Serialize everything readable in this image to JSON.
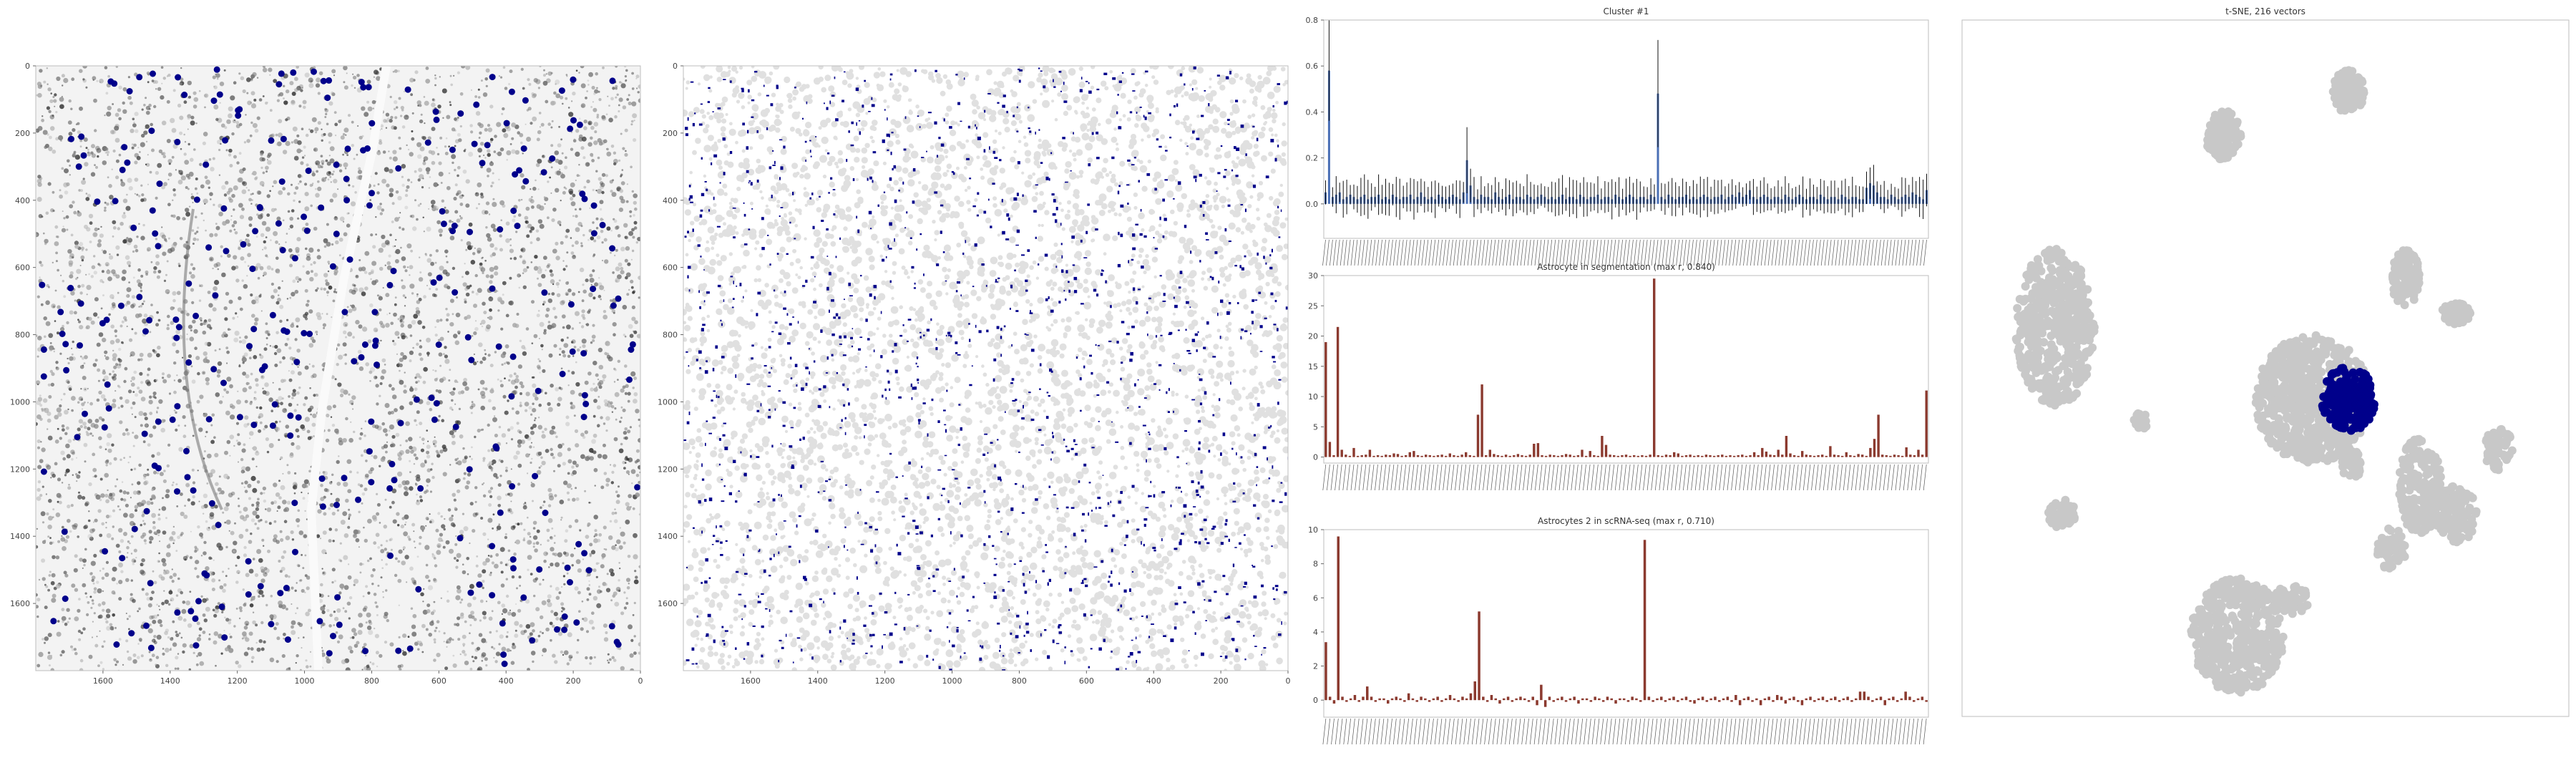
{
  "image_panels": [
    {
      "title": "",
      "type": "image-with-points",
      "xticks": [
        "1600",
        "1400",
        "1200",
        "1000",
        "800",
        "600",
        "400",
        "200",
        "0"
      ],
      "yticks": [
        "0",
        "200",
        "400",
        "600",
        "800",
        "1000",
        "1200",
        "1400",
        "1600"
      ],
      "xlim": [
        1800,
        0
      ],
      "ylim": [
        1800,
        0
      ],
      "background": "grayscale tissue stain",
      "marker_color": "#00008b"
    },
    {
      "title": "",
      "type": "segmentation-map",
      "xticks": [
        "1600",
        "1400",
        "1200",
        "1000",
        "800",
        "600",
        "400",
        "200",
        "0"
      ],
      "yticks": [
        "0",
        "200",
        "400",
        "600",
        "800",
        "1000",
        "1200",
        "1400",
        "1600"
      ],
      "xlim": [
        1800,
        0
      ],
      "ylim": [
        1800,
        0
      ],
      "cell_color": "#e0e0e0",
      "highlight_color": "#00008b"
    }
  ],
  "bar_panels": [
    {
      "title": "Cluster #1",
      "yticks": [
        "0.0",
        "0.2",
        "0.4",
        "0.6",
        "0.8"
      ],
      "ylim": [
        -0.15,
        0.8
      ],
      "bar_color": "#4a6fb5",
      "error_color": "#111111"
    },
    {
      "title": "Astrocyte in segmentation (max r, 0.840)",
      "yticks": [
        "0",
        "5",
        "10",
        "15",
        "20",
        "25",
        "30"
      ],
      "ylim": [
        -1,
        30
      ],
      "bar_color": "#8b3a2f"
    },
    {
      "title": "Astrocytes 2 in scRNA-seq (max r, 0.710)",
      "yticks": [
        "0",
        "2",
        "4",
        "6",
        "8",
        "10"
      ],
      "ylim": [
        -1,
        10
      ],
      "bar_color": "#8b3a2f"
    }
  ],
  "tsne": {
    "title": "t-SNE, 216 vectors",
    "background_color": "#c8c8c8",
    "highlight_color": "#00008b"
  },
  "chart_data": [
    {
      "type": "scatter",
      "title": "",
      "description_free": true,
      "xlim": [
        1800,
        0
      ],
      "ylim": [
        1800,
        0
      ],
      "series": [
        {
          "values": []
        }
      ]
    },
    {
      "type": "heatmap",
      "title": "",
      "xlim": [
        1800,
        0
      ],
      "ylim": [
        1800,
        0
      ]
    },
    {
      "type": "bar",
      "title": "Cluster #1",
      "ylim": [
        -0.15,
        0.8
      ],
      "values": [
        0.05,
        0.58,
        0.03,
        0.04,
        0.05,
        0.02,
        0.03,
        0.04,
        0.03,
        0.02,
        0.03,
        0.04,
        0.02,
        0.03,
        0.03,
        0.04,
        0.02,
        0.03,
        0.02,
        0.04,
        0.03,
        0.02,
        0.03,
        0.03,
        0.04,
        0.02,
        0.03,
        0.05,
        0.03,
        0.02,
        0.03,
        0.02,
        0.04,
        0.03,
        0.02,
        0.03,
        0.04,
        0.03,
        0.02,
        0.05,
        0.19,
        0.08,
        0.03,
        0.02,
        0.04,
        0.03,
        0.03,
        0.02,
        0.05,
        0.03,
        0.02,
        0.03,
        0.04,
        0.02,
        0.03,
        0.03,
        0.02,
        0.04,
        0.03,
        0.02,
        0.03,
        0.04,
        0.03,
        0.02,
        0.03,
        0.02,
        0.03,
        0.04,
        0.02,
        0.03,
        0.03,
        0.02,
        0.04,
        0.03,
        0.02,
        0.03,
        0.03,
        0.04,
        0.02,
        0.03,
        0.03,
        0.02,
        0.04,
        0.03,
        0.02,
        0.03,
        0.04,
        0.03,
        0.02,
        0.03,
        0.03,
        0.02,
        0.04,
        0.03,
        0.48,
        0.03,
        0.02,
        0.04,
        0.03,
        0.02,
        0.03,
        0.03,
        0.04,
        0.02,
        0.03,
        0.02,
        0.03,
        0.04,
        0.03,
        0.02,
        0.03,
        0.03,
        0.04,
        0.02,
        0.03,
        0.04,
        0.03,
        0.05,
        0.03,
        0.04,
        0.06,
        0.03,
        0.02,
        0.03,
        0.04,
        0.03,
        0.02,
        0.03,
        0.03,
        0.02,
        0.04,
        0.03,
        0.02,
        0.03,
        0.04,
        0.03,
        0.02,
        0.03,
        0.03,
        0.02,
        0.04,
        0.03,
        0.02,
        0.03,
        0.03,
        0.02,
        0.04,
        0.03,
        0.02,
        0.03,
        0.03,
        0.02,
        0.02,
        0.07,
        0.09,
        0.08,
        0.05,
        0.03,
        0.03,
        0.02,
        0.04,
        0.03,
        0.02,
        0.03,
        0.04,
        0.03,
        0.05,
        0.04,
        0.03,
        0.02,
        0.06
      ]
    },
    {
      "type": "bar",
      "title": "Astrocyte in segmentation (max r, 0.840)",
      "ylim": [
        -1,
        30
      ],
      "values": [
        19,
        2.5,
        0.3,
        21.5,
        1.2,
        0.4,
        0.2,
        1.5,
        0.2,
        0.3,
        0.4,
        1.2,
        0.2,
        0.3,
        0.2,
        0.4,
        0.3,
        0.6,
        0.5,
        0.2,
        0.3,
        0.8,
        1,
        0.3,
        0.2,
        0.4,
        0.3,
        0.2,
        0.3,
        0.4,
        0.2,
        0.6,
        0.3,
        0.2,
        0.4,
        0.8,
        0.3,
        0.2,
        7,
        12,
        0.3,
        1.2,
        0.5,
        0.3,
        0.2,
        0.4,
        0.2,
        0.3,
        0.5,
        0.3,
        0.2,
        0.4,
        2.2,
        2.3,
        0.3,
        0.2,
        0.4,
        0.3,
        0.2,
        0.3,
        0.5,
        0.4,
        0.2,
        0.3,
        1.2,
        0.2,
        1,
        0.3,
        0.2,
        3.5,
        2,
        0.4,
        0.3,
        0.2,
        0.3,
        0.4,
        0.2,
        0.3,
        0.2,
        0.3,
        0.2,
        0.4,
        29.5,
        0.3,
        0.2,
        0.4,
        0.3,
        0.8,
        0.6,
        0.2,
        0.3,
        0.4,
        0.2,
        0.3,
        0.2,
        0.4,
        0.3,
        0.2,
        0.3,
        0.4,
        0.2,
        0.3,
        0.2,
        0.3,
        0.4,
        0.2,
        0.3,
        0.8,
        0.3,
        1.5,
        0.9,
        0.4,
        0.3,
        1.2,
        0.4,
        3.5,
        0.6,
        0.3,
        0.2,
        1,
        0.4,
        0.3,
        0.2,
        0.3,
        0.4,
        0.2,
        1.8,
        0.4,
        0.3,
        0.2,
        0.8,
        0.3,
        0.2,
        0.5,
        0.4,
        0.2,
        1.5,
        3,
        7,
        0.4,
        0.3,
        0.2,
        0.4,
        0.3,
        0.2,
        1.6,
        0.4,
        0.3,
        1.2,
        0.4,
        11
      ]
    },
    {
      "type": "bar",
      "title": "Astrocytes 2 in scRNA-seq (max r, 0.710)",
      "ylim": [
        -1,
        10
      ],
      "values": [
        3.4,
        0.2,
        -0.2,
        9.6,
        0.2,
        -0.1,
        0.1,
        0.3,
        -0.1,
        0.2,
        0.8,
        0.2,
        -0.1,
        0.1,
        0.1,
        -0.2,
        0.1,
        0.2,
        0.1,
        -0.1,
        0.4,
        0.1,
        -0.1,
        0.2,
        0.1,
        -0.1,
        0.1,
        0.2,
        -0.1,
        0.1,
        0.3,
        0.1,
        -0.1,
        0.2,
        0.1,
        0.4,
        1.1,
        5.2,
        0.2,
        -0.1,
        0.3,
        0.1,
        -0.2,
        0.1,
        0.2,
        -0.1,
        0.1,
        0.2,
        0.1,
        -0.1,
        0.2,
        -0.3,
        0.9,
        -0.4,
        0.2,
        -0.1,
        0.1,
        0.2,
        -0.1,
        0.1,
        0.2,
        -0.2,
        0.1,
        0.1,
        -0.1,
        0.2,
        0.1,
        -0.1,
        0.2,
        0.1,
        -0.2,
        0.1,
        0.1,
        -0.1,
        0.2,
        0.1,
        -0.1,
        9.4,
        0.2,
        -0.1,
        0.1,
        0.2,
        -0.1,
        0.1,
        0.2,
        -0.1,
        0.1,
        0.2,
        -0.1,
        -0.2,
        0.1,
        0.2,
        -0.1,
        0.1,
        0.2,
        -0.1,
        0.1,
        0.2,
        -0.1,
        0.3,
        -0.3,
        0.1,
        0.2,
        -0.1,
        0.1,
        -0.3,
        0.1,
        0.2,
        -0.1,
        0.3,
        0.2,
        -0.2,
        0.1,
        0.2,
        -0.1,
        -0.3,
        0.1,
        0.2,
        -0.1,
        0.1,
        0.2,
        -0.1,
        0.1,
        0.2,
        -0.1,
        0.1,
        0.2,
        -0.1,
        0.1,
        0.5,
        0.5,
        0.2,
        -0.1,
        0.1,
        0.2,
        -0.3,
        0.1,
        0.2,
        -0.1,
        0.1,
        0.5,
        0.2,
        -0.1,
        0.1,
        0.2,
        -0.1
      ]
    },
    {
      "type": "scatter",
      "title": "t-SNE, 216 vectors",
      "xlim": [
        0,
        100
      ],
      "ylim": [
        0,
        100
      ]
    }
  ]
}
